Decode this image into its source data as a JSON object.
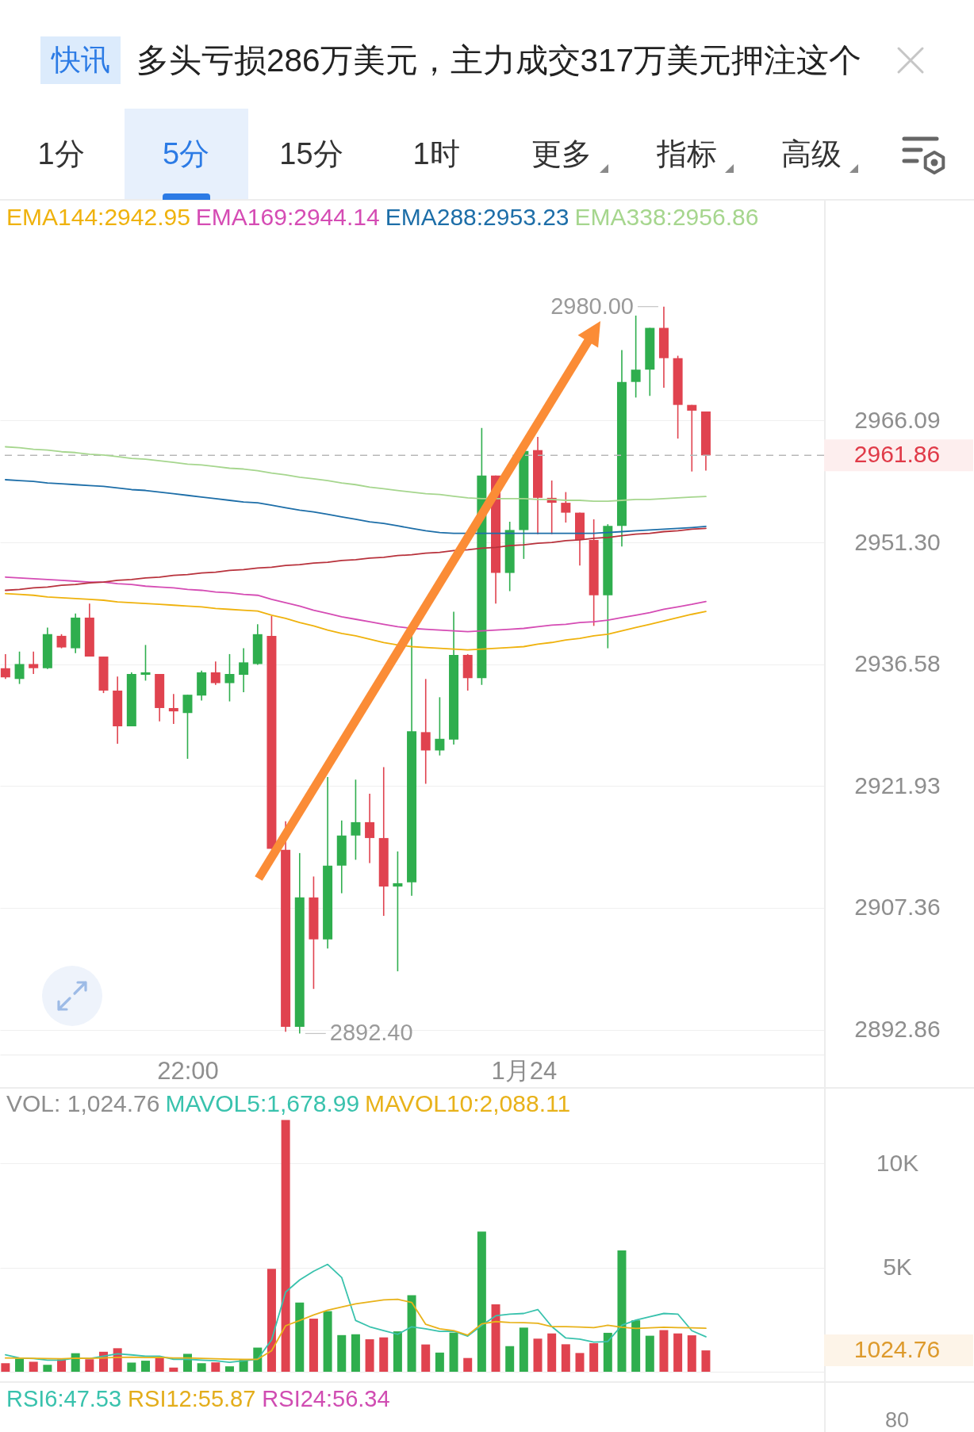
{
  "chart_data": [
    {
      "type": "other",
      "annotations": [
        "快讯",
        "多头亏损286万美元，主力成交317万美元押注这个",
        "1分",
        "5分",
        "15分",
        "1时",
        "更多",
        "指标",
        "高级"
      ]
    },
    {
      "type": "candlestick",
      "legend": "top left",
      "log": "y",
      "grid": "y",
      "categories": [
        null,
        null,
        null,
        null,
        null,
        null,
        null,
        null,
        null,
        null,
        null,
        null,
        null,
        "22:00",
        null,
        null,
        null,
        null,
        null,
        null,
        null,
        null,
        null,
        null,
        null,
        null,
        null,
        null,
        null,
        null,
        null,
        null,
        null,
        null,
        null,
        null,
        null,
        "1月24",
        null,
        null,
        null,
        null,
        null,
        null,
        null,
        null,
        null,
        null,
        null,
        null,
        null
      ],
      "ohlc": [
        [
          2936.1,
          2937.8,
          2934.8,
          2935.0
        ],
        [
          2934.8,
          2938.1,
          2934.2,
          2936.6
        ],
        [
          2936.6,
          2938.1,
          2935.4,
          2936.1
        ],
        [
          2936.1,
          2941.0,
          2936.0,
          2940.2
        ],
        [
          2940.0,
          2940.2,
          2938.5,
          2938.6
        ],
        [
          2938.5,
          2942.7,
          2937.9,
          2942.2
        ],
        [
          2942.2,
          2943.9,
          2937.5,
          2937.5
        ],
        [
          2937.5,
          2937.5,
          2933.1,
          2933.4
        ],
        [
          2933.4,
          2935.1,
          2927.0,
          2929.1
        ],
        [
          2929.1,
          2935.6,
          2929.1,
          2935.4
        ],
        [
          2935.3,
          2938.9,
          2934.6,
          2935.6
        ],
        [
          2935.4,
          2935.4,
          2929.7,
          2931.3
        ],
        [
          2931.3,
          2933.0,
          2929.4,
          2930.9
        ],
        [
          2930.7,
          2932.9,
          2925.2,
          2932.9
        ],
        [
          2932.8,
          2935.8,
          2932.2,
          2935.6
        ],
        [
          2935.6,
          2936.9,
          2934.1,
          2934.3
        ],
        [
          2934.3,
          2937.8,
          2932.1,
          2935.4
        ],
        [
          2935.3,
          2938.5,
          2933.2,
          2936.8
        ],
        [
          2936.6,
          2941.4,
          2936.5,
          2940.2
        ],
        [
          2940.0,
          2942.4,
          2914.4,
          2914.4
        ],
        [
          2914.3,
          2917.7,
          2892.6,
          2893.2
        ],
        [
          2893.2,
          2913.9,
          2892.4,
          2908.6
        ],
        [
          2908.6,
          2911.1,
          2897.7,
          2903.6
        ],
        [
          2903.6,
          2923.0,
          2902.5,
          2912.4
        ],
        [
          2912.4,
          2917.8,
          2909.1,
          2916.0
        ],
        [
          2916.0,
          2922.7,
          2913.1,
          2917.6
        ],
        [
          2917.6,
          2921.0,
          2912.7,
          2915.7
        ],
        [
          2915.7,
          2924.2,
          2906.4,
          2909.9
        ],
        [
          2909.9,
          2914.1,
          2899.8,
          2910.3
        ],
        [
          2910.4,
          2940.2,
          2908.8,
          2928.5
        ],
        [
          2928.4,
          2934.8,
          2922.2,
          2926.2
        ],
        [
          2926.2,
          2932.6,
          2925.6,
          2927.6
        ],
        [
          2927.5,
          2942.9,
          2926.9,
          2937.7
        ],
        [
          2937.7,
          2937.8,
          2933.4,
          2934.9
        ],
        [
          2934.9,
          2965.2,
          2934.1,
          2959.4
        ],
        [
          2959.4,
          2959.4,
          2943.9,
          2947.6
        ],
        [
          2947.6,
          2953.8,
          2945.4,
          2952.8
        ],
        [
          2952.8,
          2962.4,
          2949.3,
          2962.4
        ],
        [
          2962.5,
          2964.1,
          2952.3,
          2956.7
        ],
        [
          2956.7,
          2958.8,
          2952.3,
          2956.1
        ],
        [
          2956.1,
          2957.4,
          2953.7,
          2954.9
        ],
        [
          2954.9,
          2954.9,
          2948.5,
          2951.6
        ],
        [
          2951.6,
          2954.1,
          2941.2,
          2944.9
        ],
        [
          2944.9,
          2953.5,
          2938.5,
          2953.3
        ],
        [
          2953.3,
          2974.7,
          2950.8,
          2970.8
        ],
        [
          2970.8,
          2978.9,
          2968.9,
          2972.3
        ],
        [
          2972.3,
          2977.4,
          2969.1,
          2977.4
        ],
        [
          2977.4,
          2980,
          2970.1,
          2973.7
        ],
        [
          2973.7,
          2974.0,
          2963.9,
          2968.0
        ],
        [
          2968.0,
          2968.0,
          2959.9,
          2967.3
        ],
        [
          2967.2,
          2967.2,
          2960.0,
          2961.86
        ]
      ],
      "colors": [
        "#e0434f",
        "#2fae4e",
        "#e0434f",
        "#2fae4e",
        "#e0434f",
        "#2fae4e",
        "#e0434f",
        "#e0434f",
        "#e0434f",
        "#2fae4e",
        "#2fae4e",
        "#e0434f",
        "#e0434f",
        "#2fae4e",
        "#2fae4e",
        "#e0434f",
        "#2fae4e",
        "#2fae4e",
        "#2fae4e",
        "#e0434f",
        "#e0434f",
        "#2fae4e",
        "#e0434f",
        "#2fae4e",
        "#2fae4e",
        "#2fae4e",
        "#e0434f",
        "#e0434f",
        "#2fae4e",
        "#2fae4e",
        "#e0434f",
        "#2fae4e",
        "#2fae4e",
        "#e0434f",
        "#2fae4e",
        "#e0434f",
        "#2fae4e",
        "#2fae4e",
        "#e0434f",
        "#e0434f",
        "#e0434f",
        "#e0434f",
        "#e0434f",
        "#2fae4e",
        "#2fae4e",
        "#2fae4e",
        "#2fae4e",
        "#e0434f",
        "#e0434f",
        "#e0434f",
        "#e0434f"
      ],
      "series": [
        {
          "name": "EMA144:2942.95",
          "type": "line",
          "color": "#efb20d",
          "values": [
            2945.1,
            2945.0,
            2944.9,
            2944.7,
            2944.6,
            2944.5,
            2944.4,
            2944.3,
            2944.1,
            2944.0,
            2943.9,
            2943.8,
            2943.7,
            2943.6,
            2943.5,
            2943.3,
            2943.2,
            2943.1,
            2943.0,
            2942.5,
            2942.1,
            2941.6,
            2941.2,
            2940.7,
            2940.3,
            2940.0,
            2939.6,
            2939.2,
            2938.9,
            2938.7,
            2938.6,
            2938.5,
            2938.4,
            2938.3,
            2938.4,
            2938.5,
            2938.6,
            2938.7,
            2939.0,
            2939.2,
            2939.5,
            2939.7,
            2940.0,
            2940.2,
            2940.6,
            2941.0,
            2941.4,
            2941.8,
            2942.2,
            2942.6,
            2942.95
          ]
        },
        {
          "name": "EMA169:2944.14",
          "type": "line",
          "color": "#d54cb4",
          "values": [
            2947.1,
            2947.0,
            2946.9,
            2946.8,
            2946.7,
            2946.6,
            2946.5,
            2946.5,
            2946.3,
            2946.2,
            2946.0,
            2945.9,
            2945.8,
            2945.6,
            2945.5,
            2945.3,
            2945.2,
            2945.0,
            2944.9,
            2944.4,
            2944.0,
            2943.6,
            2943.1,
            2942.7,
            2942.3,
            2942.0,
            2941.7,
            2941.4,
            2941.1,
            2940.9,
            2940.8,
            2940.7,
            2940.6,
            2940.5,
            2940.6,
            2940.7,
            2940.8,
            2940.9,
            2941.1,
            2941.3,
            2941.4,
            2941.6,
            2941.7,
            2941.9,
            2942.2,
            2942.5,
            2942.8,
            2943.2,
            2943.5,
            2943.8,
            2944.14
          ]
        },
        {
          "name": "EMA288:2953.23",
          "type": "line",
          "color": "#1d6ea8",
          "values": [
            2958.9,
            2958.8,
            2958.7,
            2958.5,
            2958.4,
            2958.3,
            2958.2,
            2958.1,
            2957.9,
            2957.7,
            2957.6,
            2957.4,
            2957.2,
            2957.0,
            2956.8,
            2956.6,
            2956.4,
            2956.2,
            2956.1,
            2955.8,
            2955.5,
            2955.2,
            2955.0,
            2954.7,
            2954.4,
            2954.1,
            2953.8,
            2953.6,
            2953.3,
            2953.0,
            2952.7,
            2952.5,
            2952.4,
            2952.4,
            2952.4,
            2952.4,
            2952.4,
            2952.4,
            2952.4,
            2952.4,
            2952.4,
            2952.4,
            2952.4,
            2952.5,
            2952.6,
            2952.7,
            2952.8,
            2952.9,
            2953.0,
            2953.1,
            2953.23
          ]
        },
        {
          "name": "EMA338:2956.86",
          "type": "line",
          "color": "#a6d68e",
          "values": [
            2962.9,
            2962.8,
            2962.6,
            2962.5,
            2962.3,
            2962.2,
            2962.0,
            2961.9,
            2961.7,
            2961.5,
            2961.4,
            2961.2,
            2961.0,
            2960.8,
            2960.7,
            2960.5,
            2960.3,
            2960.2,
            2960.0,
            2959.7,
            2959.5,
            2959.2,
            2959.0,
            2958.8,
            2958.5,
            2958.3,
            2958.0,
            2957.8,
            2957.6,
            2957.4,
            2957.2,
            2957.1,
            2956.9,
            2956.7,
            2956.6,
            2956.6,
            2956.6,
            2956.6,
            2956.5,
            2956.5,
            2956.4,
            2956.4,
            2956.3,
            2956.3,
            2956.4,
            2956.5,
            2956.5,
            2956.6,
            2956.7,
            2956.8,
            2956.86
          ]
        },
        {
          "type": "line",
          "color": "#b8323c",
          "values": [
            2945.5,
            2945.6,
            2945.8,
            2945.9,
            2946.1,
            2946.2,
            2946.4,
            2946.5,
            2946.7,
            2946.8,
            2947.0,
            2947.1,
            2947.3,
            2947.4,
            2947.6,
            2947.7,
            2947.9,
            2948.0,
            2948.2,
            2948.3,
            2948.5,
            2948.6,
            2948.8,
            2948.9,
            2949.1,
            2949.2,
            2949.4,
            2949.5,
            2949.7,
            2949.8,
            2950.0,
            2950.1,
            2950.3,
            2950.4,
            2950.6,
            2950.7,
            2950.9,
            2951.0,
            2951.2,
            2951.3,
            2951.5,
            2951.6,
            2951.8,
            2951.9,
            2952.1,
            2952.3,
            2952.4,
            2952.6,
            2952.7,
            2952.9,
            2953.0
          ]
        }
      ],
      "ylim": [
        2889.9,
        2992.8
      ],
      "yticks": [
        {
          "value": 2892.86,
          "label": "2892.86"
        },
        {
          "value": 2907.36,
          "label": "2907.36"
        },
        {
          "value": 2921.93,
          "label": "2921.93"
        },
        {
          "value": 2936.58,
          "label": "2936.58"
        },
        {
          "value": 2951.3,
          "label": "2951.30"
        },
        {
          "value": 2966.09,
          "label": "2966.09"
        }
      ],
      "ref_lines": [
        {
          "axis": "y",
          "value": 2961.86,
          "color": "#b8b8b8",
          "line_style": "dashed"
        }
      ],
      "annotations": [
        "2980.00",
        "2892.40",
        "2961.86"
      ]
    },
    {
      "type": "bar",
      "title": "VOL: 1,024.76",
      "legend": "top left",
      "grid": "y",
      "categories": [
        null,
        null,
        null,
        null,
        null,
        null,
        null,
        null,
        null,
        null,
        null,
        null,
        null,
        null,
        null,
        null,
        null,
        null,
        null,
        null,
        null,
        null,
        null,
        null,
        null,
        null,
        null,
        null,
        null,
        null,
        null,
        null,
        null,
        null,
        null,
        null,
        null,
        null,
        null,
        null,
        null,
        null,
        null,
        null,
        null,
        null,
        null,
        null,
        null,
        null,
        null
      ],
      "series": [
        {
          "type": "bar",
          "colors": [
            "#e0434f",
            "#2fae4e",
            "#e0434f",
            "#2fae4e",
            "#e0434f",
            "#2fae4e",
            "#e0434f",
            "#e0434f",
            "#e0434f",
            "#2fae4e",
            "#2fae4e",
            "#e0434f",
            "#e0434f",
            "#2fae4e",
            "#2fae4e",
            "#e0434f",
            "#2fae4e",
            "#2fae4e",
            "#2fae4e",
            "#e0434f",
            "#e0434f",
            "#2fae4e",
            "#e0434f",
            "#2fae4e",
            "#2fae4e",
            "#2fae4e",
            "#e0434f",
            "#e0434f",
            "#2fae4e",
            "#2fae4e",
            "#e0434f",
            "#2fae4e",
            "#2fae4e",
            "#e0434f",
            "#2fae4e",
            "#e0434f",
            "#2fae4e",
            "#2fae4e",
            "#e0434f",
            "#e0434f",
            "#e0434f",
            "#e0434f",
            "#e0434f",
            "#2fae4e",
            "#2fae4e",
            "#2fae4e",
            "#2fae4e",
            "#e0434f",
            "#e0434f",
            "#e0434f",
            "#e0434f"
          ],
          "values": [
            410,
            630,
            480,
            330,
            600,
            890,
            600,
            960,
            1130,
            440,
            530,
            680,
            200,
            860,
            410,
            450,
            260,
            600,
            1160,
            4940,
            12100,
            3320,
            2550,
            2910,
            1760,
            1800,
            1560,
            1650,
            1940,
            3680,
            1310,
            920,
            1880,
            660,
            6730,
            3240,
            1230,
            2120,
            1590,
            1840,
            1320,
            900,
            1370,
            1870,
            5830,
            2470,
            1730,
            2000,
            1840,
            1750,
            1024.76
          ]
        },
        {
          "name": "MAVOL5:1,678.99",
          "type": "line",
          "color": "#39c2ad",
          "values": [
            810,
            660,
            630,
            560,
            560,
            660,
            630,
            750,
            860,
            810,
            750,
            750,
            600,
            600,
            560,
            530,
            450,
            530,
            600,
            1530,
            3830,
            4410,
            4830,
            5160,
            4530,
            2460,
            2160,
            1980,
            1800,
            2160,
            2060,
            1940,
            1950,
            1710,
            2230,
            2690,
            2770,
            2800,
            2990,
            2170,
            1620,
            1570,
            1420,
            1450,
            2230,
            2480,
            2640,
            2800,
            2770,
            1970,
            1678.99
          ]
        },
        {
          "name": "MAVOL10:2,088.11",
          "type": "line",
          "color": "#e8b21a",
          "values": [
            660,
            650,
            640,
            630,
            620,
            650,
            640,
            660,
            690,
            700,
            680,
            690,
            660,
            660,
            640,
            620,
            600,
            590,
            600,
            1010,
            2210,
            2460,
            2730,
            2960,
            3110,
            3260,
            3360,
            3450,
            3480,
            3330,
            2280,
            2060,
            1980,
            1760,
            2300,
            2410,
            2370,
            2360,
            2330,
            2170,
            2170,
            2150,
            2120,
            2230,
            2140,
            2080,
            2110,
            2140,
            2120,
            2110,
            2088.11
          ]
        }
      ],
      "ylim": [
        0,
        13600
      ],
      "yticks": [
        {
          "value": 5000,
          "label": "5K"
        },
        {
          "value": 10000,
          "label": "10K"
        }
      ],
      "annotations": [
        "1024.76"
      ]
    },
    {
      "type": "other",
      "annotations": [
        "RSI6:47.53",
        "RSI12:55.87",
        "RSI24:56.34",
        "80"
      ]
    }
  ]
}
